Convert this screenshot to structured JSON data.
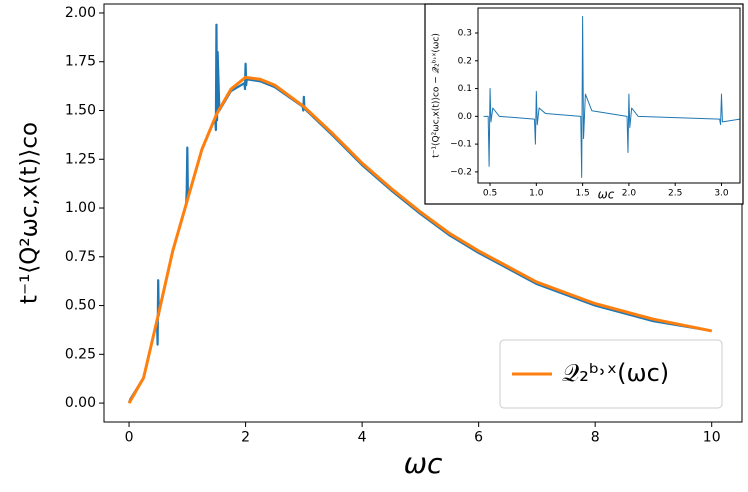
{
  "chart_data": [
    {
      "type": "line",
      "x_label": "ωc",
      "y_label": "t⁻¹⟨Q²ωc,x(t)⟩co",
      "xlim": [
        -0.43,
        10.52
      ],
      "ylim": [
        -0.097,
        2.046
      ],
      "xticks": [
        0,
        2,
        4,
        6,
        8,
        10
      ],
      "yticks": [
        {
          "value": 0,
          "label": "0.00"
        },
        {
          "value": 0.25,
          "label": "0.25"
        },
        {
          "value": 0.5,
          "label": "0.50"
        },
        {
          "value": 0.75,
          "label": "0.75"
        },
        {
          "value": 1,
          "label": "1.00"
        },
        {
          "value": 1.25,
          "label": "1.25"
        },
        {
          "value": 1.5,
          "label": "1.50"
        },
        {
          "value": 1.75,
          "label": "1.75"
        },
        {
          "value": 2,
          "label": "2.00"
        }
      ],
      "legend": "lower right",
      "series": [
        {
          "color": "#1f77b4",
          "x": [
            0,
            0.02,
            0.25,
            0.48,
            0.49,
            0.5,
            0.51,
            0.52,
            0.75,
            0.98,
            0.99,
            1.0,
            1.01,
            1.02,
            1.25,
            1.48,
            1.49,
            1.5,
            1.51,
            1.52,
            1.55,
            1.75,
            1.98,
            1.99,
            2.0,
            2.01,
            2.02,
            2.25,
            2.5,
            2.98,
            2.99,
            3.0,
            3.01,
            3.5,
            4,
            4.5,
            5,
            5.5,
            6,
            7,
            8,
            9,
            10
          ],
          "values": [
            0,
            0.02,
            0.13,
            0.42,
            0.3,
            0.63,
            0.45,
            0.47,
            0.78,
            1.02,
            1.09,
            1.31,
            1.05,
            1.06,
            1.3,
            1.46,
            1.4,
            1.94,
            1.45,
            1.8,
            1.5,
            1.6,
            1.64,
            1.61,
            1.74,
            1.63,
            1.66,
            1.65,
            1.62,
            1.52,
            1.5,
            1.57,
            1.51,
            1.37,
            1.22,
            1.09,
            0.97,
            0.86,
            0.77,
            0.61,
            0.5,
            0.42,
            0.37
          ]
        },
        {
          "name": "𝒬₂ᵇ˒ˣ(ωc)",
          "color": "#ff7f0e",
          "x": [
            0,
            0.25,
            0.5,
            0.75,
            1,
            1.25,
            1.5,
            1.75,
            2,
            2.25,
            2.5,
            3,
            3.5,
            4,
            4.5,
            5,
            5.5,
            6,
            7,
            8,
            9,
            10
          ],
          "values": [
            0,
            0.13,
            0.45,
            0.78,
            1.04,
            1.3,
            1.48,
            1.61,
            1.67,
            1.66,
            1.63,
            1.52,
            1.38,
            1.23,
            1.1,
            0.98,
            0.87,
            0.78,
            0.62,
            0.51,
            0.43,
            0.37
          ]
        }
      ]
    },
    {
      "type": "line",
      "x_label": "ωc",
      "y_label": "t⁻¹⟨Q²ωc,x(t)⟩co − 𝒬₂ᵇ˒ˣ(ωc)",
      "xlim": [
        0.37,
        3.2
      ],
      "ylim": [
        -0.24,
        0.39
      ],
      "xticks": [
        0.5,
        {
          "value": 1,
          "label": "1.0"
        },
        1.5,
        {
          "value": 2,
          "label": "2.0"
        },
        2.5,
        {
          "value": 3,
          "label": "3.0"
        }
      ],
      "yticks": [
        {
          "value": -0.2,
          "label": "−0.2"
        },
        {
          "value": -0.1,
          "label": "−0.1"
        },
        {
          "value": 0,
          "label": "0.0"
        },
        0.1,
        0.2,
        0.3
      ],
      "series": [
        {
          "color": "#1f77b4",
          "x": [
            0.43,
            0.48,
            0.49,
            0.5,
            0.51,
            0.53,
            0.6,
            0.98,
            0.99,
            1.0,
            1.01,
            1.03,
            1.1,
            1.48,
            1.49,
            1.5,
            1.51,
            1.53,
            1.6,
            1.98,
            1.99,
            2.0,
            2.01,
            2.03,
            2.1,
            2.98,
            2.99,
            3.0,
            3.01,
            3.2
          ],
          "values": [
            0,
            0,
            -0.18,
            0.1,
            -0.02,
            0.03,
            0,
            -0.01,
            -0.1,
            0.09,
            -0.03,
            0.03,
            0.01,
            0,
            -0.22,
            0.36,
            -0.08,
            0.08,
            0.02,
            0,
            -0.13,
            0.08,
            -0.04,
            0.03,
            0,
            -0.01,
            -0.03,
            0.08,
            -0.02,
            -0.01
          ]
        }
      ]
    }
  ]
}
